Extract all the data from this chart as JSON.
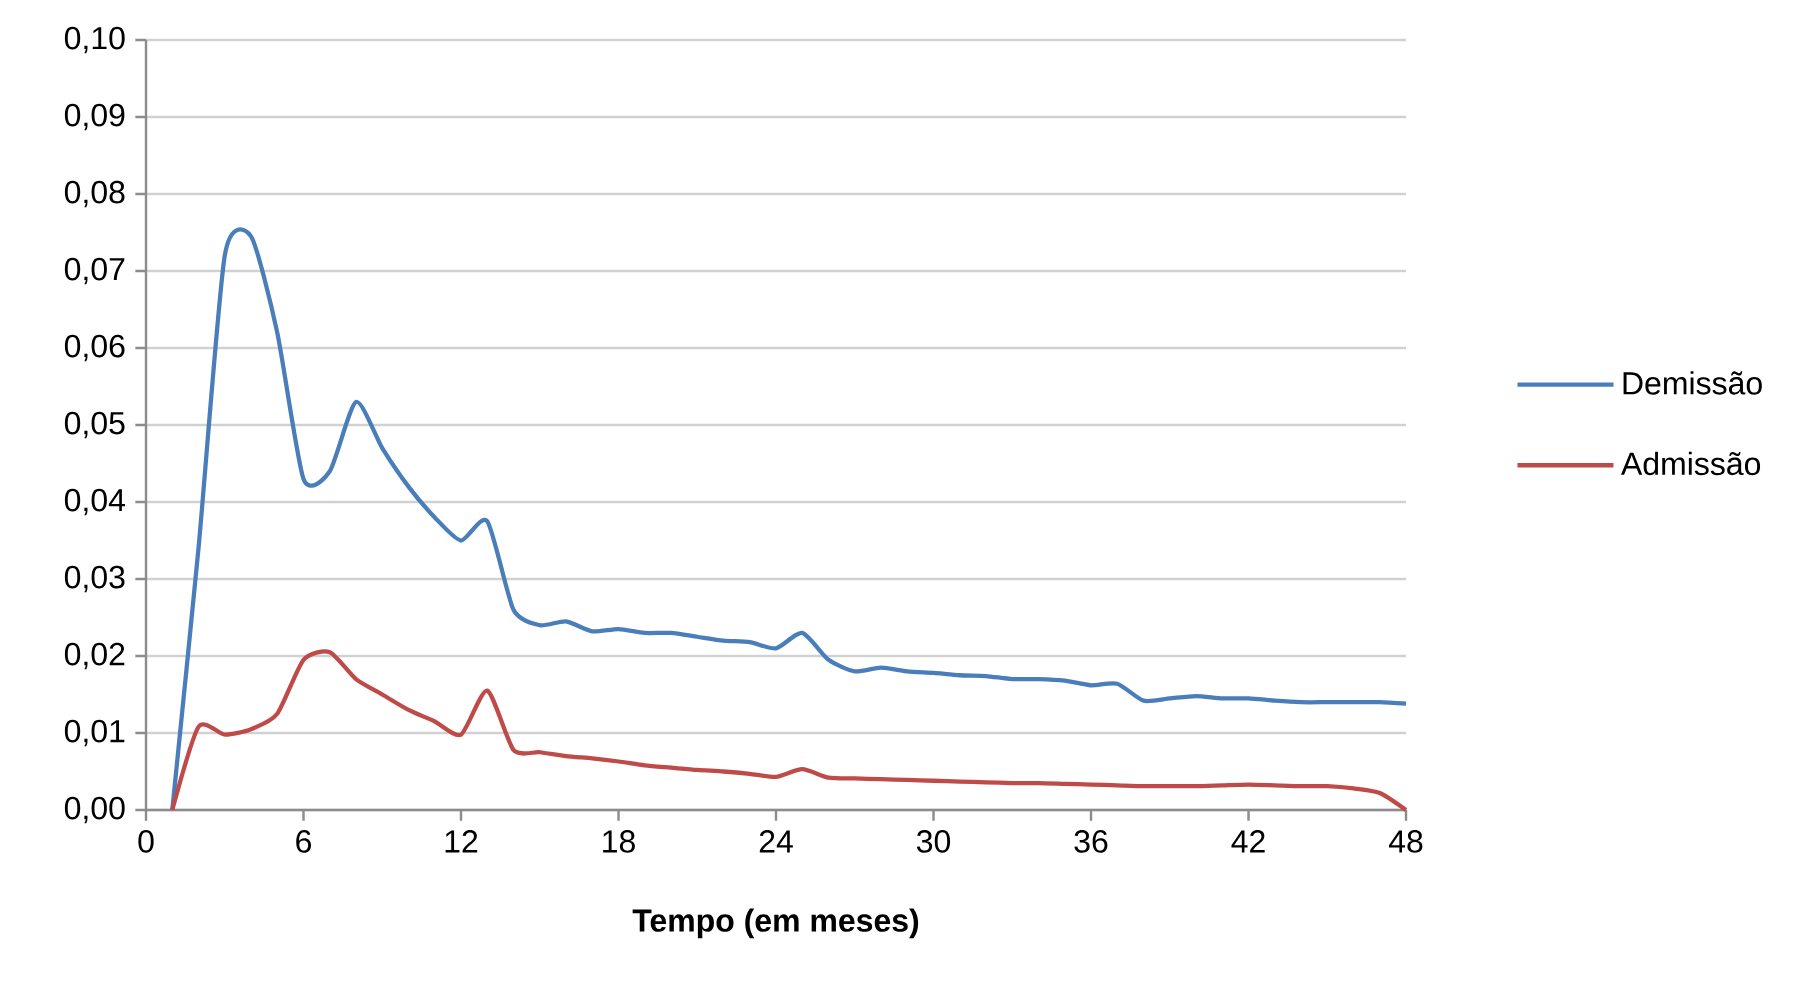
{
  "chart_data": {
    "type": "line",
    "xlabel": "Tempo (em meses)",
    "x": [
      1,
      2,
      3,
      4,
      5,
      6,
      7,
      8,
      9,
      10,
      11,
      12,
      13,
      14,
      15,
      16,
      17,
      18,
      19,
      20,
      21,
      22,
      23,
      24,
      25,
      26,
      27,
      28,
      29,
      30,
      31,
      32,
      33,
      34,
      35,
      36,
      37,
      38,
      39,
      40,
      41,
      42,
      43,
      44,
      45,
      46,
      47,
      48
    ],
    "series": [
      {
        "name": "Demissão",
        "color": "#4a7ebb",
        "values": [
          0,
          0.034,
          0.072,
          0.0745,
          0.062,
          0.043,
          0.044,
          0.053,
          0.047,
          0.042,
          0.038,
          0.035,
          0.0375,
          0.026,
          0.024,
          0.0245,
          0.0232,
          0.0235,
          0.023,
          0.023,
          0.0225,
          0.022,
          0.0218,
          0.021,
          0.023,
          0.0195,
          0.018,
          0.0185,
          0.018,
          0.0178,
          0.0175,
          0.0174,
          0.017,
          0.017,
          0.0168,
          0.0162,
          0.0164,
          0.0142,
          0.0145,
          0.0148,
          0.0145,
          0.0145,
          0.0142,
          0.014,
          0.014,
          0.014,
          0.014,
          0.0138
        ]
      },
      {
        "name": "Admissão",
        "color": "#be4b48",
        "values": [
          0,
          0.0108,
          0.0098,
          0.0105,
          0.0125,
          0.0195,
          0.0205,
          0.017,
          0.015,
          0.013,
          0.0115,
          0.0098,
          0.0155,
          0.0078,
          0.0075,
          0.007,
          0.0067,
          0.0063,
          0.0058,
          0.0055,
          0.0052,
          0.005,
          0.0047,
          0.0043,
          0.0053,
          0.0042,
          0.0041,
          0.004,
          0.0039,
          0.0038,
          0.0037,
          0.0036,
          0.0035,
          0.0035,
          0.0034,
          0.0033,
          0.0032,
          0.0031,
          0.0031,
          0.0031,
          0.0032,
          0.0033,
          0.0032,
          0.0031,
          0.0031,
          0.0028,
          0.0022,
          0
        ]
      }
    ],
    "xlim": [
      0,
      48
    ],
    "xticks": [
      0,
      6,
      12,
      18,
      24,
      30,
      36,
      42,
      48
    ],
    "ylim": [
      0,
      0.1
    ],
    "yticks": [
      {
        "value": 0,
        "label": "0,00"
      },
      {
        "value": 0.01,
        "label": "0,01"
      },
      {
        "value": 0.02,
        "label": "0,02"
      },
      {
        "value": 0.03,
        "label": "0,03"
      },
      {
        "value": 0.04,
        "label": "0,04"
      },
      {
        "value": 0.05,
        "label": "0,05"
      },
      {
        "value": 0.06,
        "label": "0,06"
      },
      {
        "value": 0.07,
        "label": "0,07"
      },
      {
        "value": 0.08,
        "label": "0,08"
      },
      {
        "value": 0.09,
        "label": "0,09"
      },
      {
        "value": 0.1,
        "label": "0,10"
      }
    ],
    "grid": "y",
    "legend": "right",
    "marker": "none",
    "line_style": "solid"
  }
}
